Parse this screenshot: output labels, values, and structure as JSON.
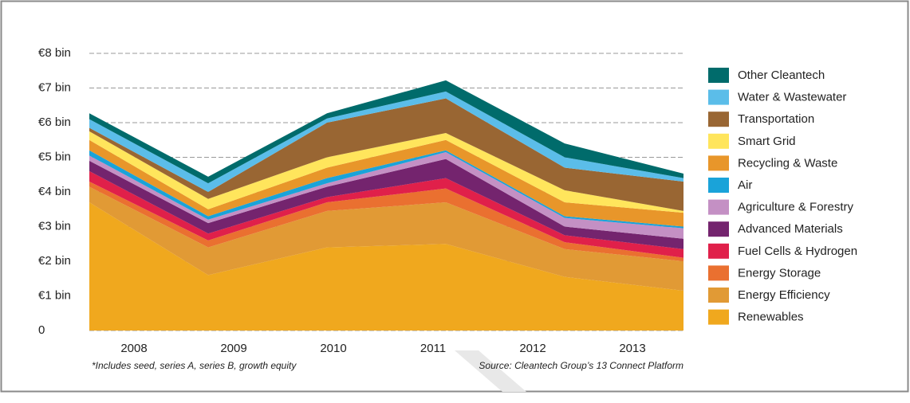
{
  "chart_data": {
    "type": "stacked-area",
    "categories": [
      "2008",
      "2009",
      "2010",
      "2011",
      "2012",
      "2013"
    ],
    "ylim": [
      0,
      8
    ],
    "yticks": [
      0,
      {
        "value": 1,
        "label": "€1 bin"
      },
      {
        "value": 2,
        "label": "€2 bin"
      },
      {
        "value": 3,
        "label": "€3 bin"
      },
      {
        "value": 4,
        "label": "€4 bin"
      },
      {
        "value": 5,
        "label": "€5 bin"
      },
      {
        "value": 6,
        "label": "€6 bin"
      },
      {
        "value": 7,
        "label": "€7 bin"
      },
      {
        "value": 8,
        "label": "€8 bin"
      }
    ],
    "grid": true,
    "legend": "right",
    "note": "*Includes seed, series A, series B, growth equity",
    "source": "Source: Cleantech Group’s 13 Connect Platform",
    "series": [
      {
        "name": "Renewables",
        "color": "#f0a81e",
        "values": [
          3.7,
          1.6,
          2.4,
          2.5,
          1.55,
          1.15
        ]
      },
      {
        "name": "Energy Efficiency",
        "color": "#e19a35",
        "values": [
          0.45,
          0.8,
          1.05,
          1.2,
          0.8,
          0.85
        ]
      },
      {
        "name": "Energy Storage",
        "color": "#ea7030",
        "values": [
          0.15,
          0.2,
          0.25,
          0.4,
          0.2,
          0.1
        ]
      },
      {
        "name": "Fuel Cells & Hydrogen",
        "color": "#e0204a",
        "values": [
          0.3,
          0.2,
          0.15,
          0.3,
          0.2,
          0.25
        ]
      },
      {
        "name": "Advanced Materials",
        "color": "#74246e",
        "values": [
          0.3,
          0.3,
          0.3,
          0.55,
          0.25,
          0.3
        ]
      },
      {
        "name": "Agriculture & Forestry",
        "color": "#c490c4",
        "values": [
          0.15,
          0.1,
          0.1,
          0.2,
          0.25,
          0.3
        ]
      },
      {
        "name": "Air",
        "color": "#1aa3d9",
        "values": [
          0.15,
          0.1,
          0.15,
          0.05,
          0.05,
          0.05
        ]
      },
      {
        "name": "Recycling & Waste",
        "color": "#e8962a",
        "values": [
          0.3,
          0.2,
          0.3,
          0.3,
          0.4,
          0.4
        ]
      },
      {
        "name": "Smart Grid",
        "color": "#ffe55c",
        "values": [
          0.25,
          0.3,
          0.3,
          0.2,
          0.35,
          0.05
        ]
      },
      {
        "name": "Transportation",
        "color": "#996633",
        "values": [
          0.1,
          0.2,
          1.0,
          1.0,
          0.65,
          0.85
        ]
      },
      {
        "name": "Water & Wastewater",
        "color": "#5bbde9",
        "values": [
          0.25,
          0.25,
          0.12,
          0.2,
          0.3,
          0.1
        ]
      },
      {
        "name": "Other Cleantech",
        "color": "#006b6b",
        "values": [
          0.17,
          0.19,
          0.15,
          0.32,
          0.4,
          0.13
        ]
      }
    ]
  }
}
